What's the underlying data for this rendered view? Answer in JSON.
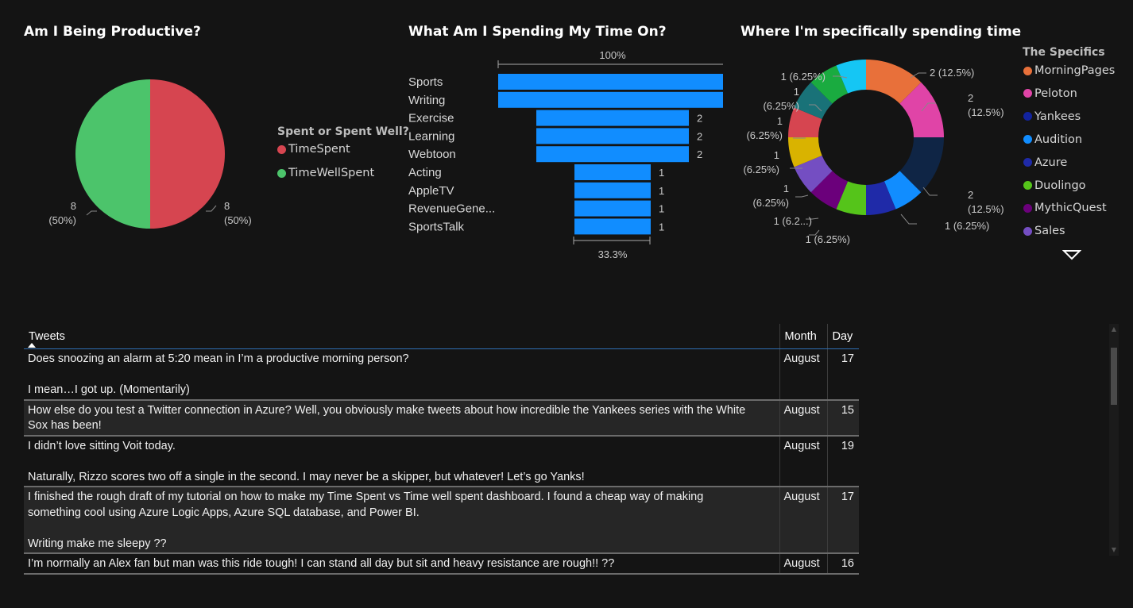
{
  "pie_visual": {
    "title": "Am I Being Productive?",
    "legend_title": "Spent or Spent Well?",
    "legend": [
      {
        "label": "TimeSpent",
        "color": "#d64550"
      },
      {
        "label": "TimeWellSpent",
        "color": "#4cc46b"
      }
    ],
    "labels": {
      "right_value": "8",
      "right_pct": "(50%)",
      "left_value": "8",
      "left_pct": "(50%)"
    }
  },
  "funnel_visual": {
    "title": "What Am I Spending My Time On?",
    "top_pct": "100%",
    "bottom_pct": "33.3%",
    "bar_color": "#118dff"
  },
  "donut_visual": {
    "title": "Where I'm specifically spending time",
    "legend_title": "The Specifics",
    "legend": [
      {
        "label": "MorningPages",
        "color": "#e8703a"
      },
      {
        "label": "Peloton",
        "color": "#e044a7"
      },
      {
        "label": "Yankees",
        "color": "#12239e"
      },
      {
        "label": "Audition",
        "color": "#118dff"
      },
      {
        "label": "Azure",
        "color": "#1f2aa8"
      },
      {
        "label": "Duolingo",
        "color": "#55c41a"
      },
      {
        "label": "MythicQuest",
        "color": "#6b007b"
      },
      {
        "label": "Sales",
        "color": "#744ec2"
      }
    ],
    "labels": [
      {
        "text": "2 (12.5%)"
      },
      {
        "text": "2"
      },
      {
        "text": "(12.5%)"
      },
      {
        "text": "2"
      },
      {
        "text": "(12.5%)"
      },
      {
        "text": "1 (6.25%)"
      },
      {
        "text": "1 (6.25%)"
      },
      {
        "text": "1 (6.2...)"
      },
      {
        "text": "1"
      },
      {
        "text": "(6.25%)"
      },
      {
        "text": "1"
      },
      {
        "text": "(6.25%)"
      },
      {
        "text": "1"
      },
      {
        "text": "(6.25%)"
      },
      {
        "text": "1"
      },
      {
        "text": "(6.25%)"
      },
      {
        "text": "1 (6.25%)"
      }
    ]
  },
  "table": {
    "headers": {
      "tweets": "Tweets",
      "month": "Month",
      "day": "Day"
    },
    "rows": [
      {
        "tweet_lines": [
          "Does snoozing an alarm at 5:20 mean in I’m a productive morning person?",
          "",
          "I mean…I got up. (Momentarily)"
        ],
        "month": "August",
        "day": "17"
      },
      {
        "tweet_lines": [
          "How else do you test a Twitter connection in Azure? Well, you obviously make tweets about how incredible the Yankees series with the White",
          "Sox has been!"
        ],
        "month": "August",
        "day": "15"
      },
      {
        "tweet_lines": [
          "I didn’t love sitting Voit today.",
          "",
          "Naturally, Rizzo scores two off a single in the second. I may never be a skipper, but whatever! Let’s go Yanks!"
        ],
        "month": "August",
        "day": "19"
      },
      {
        "tweet_lines": [
          "I finished the rough draft of my tutorial on how to make my Time Spent vs Time well spent dashboard. I found a cheap way of making",
          "something cool using Azure Logic Apps, Azure SQL database, and Power BI.",
          "",
          "Writing make me sleepy ??"
        ],
        "month": "August",
        "day": "17"
      },
      {
        "tweet_lines": [
          "I’m normally an Alex fan but man was this ride tough! I can stand all day but sit and heavy resistance are rough!! ??"
        ],
        "month": "August",
        "day": "16"
      }
    ]
  },
  "chart_data": [
    {
      "type": "pie",
      "title": "Am I Being Productive?",
      "legend_title": "Spent or Spent Well?",
      "slices": [
        {
          "label": "TimeSpent",
          "value": 8,
          "percent": 50,
          "color": "#d64550"
        },
        {
          "label": "TimeWellSpent",
          "value": 8,
          "percent": 50,
          "color": "#4cc46b"
        }
      ]
    },
    {
      "type": "bar",
      "subtype": "funnel",
      "title": "What Am I Spending My Time On?",
      "categories": [
        "Sports",
        "Writing",
        "Exercise",
        "Learning",
        "Webtoon",
        "Acting",
        "AppleTV",
        "RevenueGene...",
        "SportsTalk"
      ],
      "values": [
        3,
        3,
        2,
        2,
        2,
        1,
        1,
        1,
        1
      ],
      "value_labels": [
        "",
        "",
        "2",
        "2",
        "2",
        "1",
        "1",
        "1",
        "1"
      ],
      "top_percent": "100%",
      "bottom_percent": "33.3%"
    },
    {
      "type": "pie",
      "subtype": "donut",
      "title": "Where I'm specifically spending time",
      "legend_title": "The Specifics",
      "slices": [
        {
          "label": "MorningPages",
          "value": 2,
          "color": "#e8703a"
        },
        {
          "label": "Peloton",
          "value": 2,
          "color": "#e044a7"
        },
        {
          "label": "Yankees",
          "value": 2,
          "color": "#0f2545"
        },
        {
          "label": "Audition",
          "value": 1,
          "color": "#118dff"
        },
        {
          "label": "Azure",
          "value": 1,
          "color": "#1f2aa8"
        },
        {
          "label": "Duolingo",
          "value": 1,
          "color": "#55c41a"
        },
        {
          "label": "MythicQuest",
          "value": 1,
          "color": "#6b007b"
        },
        {
          "label": "Sales",
          "value": 1,
          "color": "#744ec2"
        },
        {
          "value": 1,
          "color": "#d9b300"
        },
        {
          "value": 1,
          "color": "#d64550"
        },
        {
          "value": 1,
          "color": "#197278"
        },
        {
          "value": 1,
          "color": "#1aab40"
        },
        {
          "value": 1,
          "color": "#15c6f4"
        }
      ]
    }
  ]
}
